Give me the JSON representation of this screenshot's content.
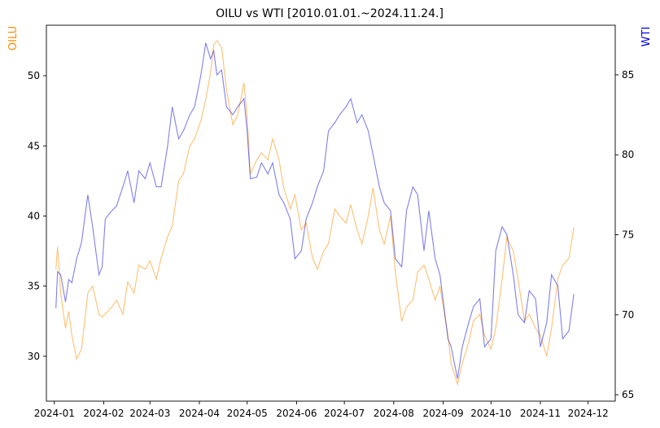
{
  "chart_data": {
    "type": "line",
    "title": "OILU vs WTI [2010.01.01.~2024.11.24.]",
    "xlabel": "",
    "y_left_label": "OILU",
    "y_right_label": "WTI",
    "x_ticks": [
      "2024-01",
      "2024-02",
      "2024-03",
      "2024-04",
      "2024-05",
      "2024-06",
      "2024-07",
      "2024-08",
      "2024-09",
      "2024-10",
      "2024-11",
      "2024-12"
    ],
    "y_left_ticks": [
      30,
      35,
      40,
      45,
      50
    ],
    "y_right_ticks": [
      65,
      70,
      75,
      80,
      85
    ],
    "y_left_lim": [
      26.8,
      53.6
    ],
    "y_right_lim": [
      64.6,
      88.1
    ],
    "x_range": [
      "2023-12-27",
      "2024-12-18"
    ],
    "grid": false,
    "colors": {
      "OILU": "#ff8c00",
      "WTI": "#0000dd"
    },
    "series": [
      {
        "name": "OILU",
        "axis": "left",
        "x": [
          "2024-01-02",
          "2024-01-03",
          "2024-01-05",
          "2024-01-08",
          "2024-01-10",
          "2024-01-12",
          "2024-01-15",
          "2024-01-18",
          "2024-01-22",
          "2024-01-25",
          "2024-01-29",
          "2024-01-31",
          "2024-02-02",
          "2024-02-06",
          "2024-02-09",
          "2024-02-13",
          "2024-02-16",
          "2024-02-20",
          "2024-02-23",
          "2024-02-27",
          "2024-03-01",
          "2024-03-05",
          "2024-03-08",
          "2024-03-12",
          "2024-03-15",
          "2024-03-19",
          "2024-03-22",
          "2024-03-26",
          "2024-03-29",
          "2024-04-02",
          "2024-04-05",
          "2024-04-08",
          "2024-04-10",
          "2024-04-12",
          "2024-04-15",
          "2024-04-18",
          "2024-04-22",
          "2024-04-25",
          "2024-04-29",
          "2024-05-01",
          "2024-05-03",
          "2024-05-07",
          "2024-05-10",
          "2024-05-14",
          "2024-05-17",
          "2024-05-21",
          "2024-05-24",
          "2024-05-28",
          "2024-05-31",
          "2024-06-04",
          "2024-06-07",
          "2024-06-11",
          "2024-06-14",
          "2024-06-18",
          "2024-06-21",
          "2024-06-25",
          "2024-06-28",
          "2024-07-02",
          "2024-07-05",
          "2024-07-09",
          "2024-07-12",
          "2024-07-16",
          "2024-07-19",
          "2024-07-23",
          "2024-07-26",
          "2024-07-30",
          "2024-08-02",
          "2024-08-06",
          "2024-08-09",
          "2024-08-13",
          "2024-08-16",
          "2024-08-20",
          "2024-08-23",
          "2024-08-27",
          "2024-08-30",
          "2024-09-04",
          "2024-09-06",
          "2024-09-10",
          "2024-09-13",
          "2024-09-17",
          "2024-09-20",
          "2024-09-24",
          "2024-09-27",
          "2024-10-01",
          "2024-10-04",
          "2024-10-08",
          "2024-10-11",
          "2024-10-15",
          "2024-10-18",
          "2024-10-22",
          "2024-10-25",
          "2024-10-29",
          "2024-11-01",
          "2024-11-05",
          "2024-11-08",
          "2024-11-12",
          "2024-11-15",
          "2024-11-19",
          "2024-11-22"
        ],
        "values": [
          36.2,
          37.8,
          34.5,
          32.0,
          33.2,
          31.5,
          29.8,
          30.5,
          34.5,
          35.0,
          33.0,
          32.8,
          33.0,
          33.5,
          34.0,
          33.0,
          35.3,
          34.5,
          36.5,
          36.2,
          36.8,
          35.5,
          37.0,
          38.5,
          39.3,
          42.5,
          43.0,
          45.0,
          45.5,
          46.8,
          48.3,
          50.2,
          52.2,
          52.5,
          52.0,
          49.0,
          46.5,
          47.2,
          49.5,
          47.0,
          43.0,
          44.0,
          44.5,
          44.0,
          45.5,
          44.0,
          42.0,
          40.5,
          41.5,
          39.0,
          39.5,
          37.0,
          36.2,
          37.5,
          38.0,
          40.5,
          40.0,
          39.5,
          40.8,
          39.0,
          38.0,
          40.0,
          42.0,
          39.0,
          38.0,
          40.0,
          36.0,
          32.5,
          33.5,
          34.0,
          36.0,
          36.5,
          35.5,
          34.0,
          35.0,
          31.5,
          29.5,
          28.0,
          29.5,
          31.0,
          32.5,
          33.0,
          31.5,
          30.5,
          32.0,
          35.5,
          38.5,
          37.5,
          35.5,
          32.5,
          33.0,
          32.0,
          31.5,
          30.0,
          32.0,
          35.5,
          36.5,
          37.0,
          39.2
        ]
      },
      {
        "name": "WTI",
        "axis": "right",
        "x": [
          "2024-01-02",
          "2024-01-03",
          "2024-01-05",
          "2024-01-08",
          "2024-01-10",
          "2024-01-12",
          "2024-01-15",
          "2024-01-18",
          "2024-01-22",
          "2024-01-25",
          "2024-01-29",
          "2024-01-31",
          "2024-02-02",
          "2024-02-06",
          "2024-02-09",
          "2024-02-13",
          "2024-02-16",
          "2024-02-20",
          "2024-02-23",
          "2024-02-27",
          "2024-03-01",
          "2024-03-05",
          "2024-03-08",
          "2024-03-12",
          "2024-03-15",
          "2024-03-19",
          "2024-03-22",
          "2024-03-26",
          "2024-03-29",
          "2024-04-02",
          "2024-04-05",
          "2024-04-08",
          "2024-04-10",
          "2024-04-12",
          "2024-04-15",
          "2024-04-18",
          "2024-04-22",
          "2024-04-25",
          "2024-04-29",
          "2024-05-01",
          "2024-05-03",
          "2024-05-07",
          "2024-05-10",
          "2024-05-14",
          "2024-05-17",
          "2024-05-21",
          "2024-05-24",
          "2024-05-28",
          "2024-05-31",
          "2024-06-04",
          "2024-06-07",
          "2024-06-11",
          "2024-06-14",
          "2024-06-18",
          "2024-06-21",
          "2024-06-25",
          "2024-06-28",
          "2024-07-02",
          "2024-07-05",
          "2024-07-09",
          "2024-07-12",
          "2024-07-16",
          "2024-07-19",
          "2024-07-23",
          "2024-07-26",
          "2024-07-30",
          "2024-08-02",
          "2024-08-06",
          "2024-08-09",
          "2024-08-13",
          "2024-08-16",
          "2024-08-20",
          "2024-08-23",
          "2024-08-27",
          "2024-08-30",
          "2024-09-04",
          "2024-09-06",
          "2024-09-10",
          "2024-09-13",
          "2024-09-17",
          "2024-09-20",
          "2024-09-24",
          "2024-09-27",
          "2024-10-01",
          "2024-10-04",
          "2024-10-08",
          "2024-10-11",
          "2024-10-15",
          "2024-10-18",
          "2024-10-22",
          "2024-10-25",
          "2024-10-29",
          "2024-11-01",
          "2024-11-05",
          "2024-11-08",
          "2024-11-12",
          "2024-11-15",
          "2024-11-19",
          "2024-11-22"
        ],
        "values": [
          70.4,
          72.7,
          72.5,
          70.8,
          72.2,
          72.0,
          73.5,
          74.5,
          77.5,
          75.5,
          72.5,
          73.0,
          76.0,
          76.5,
          76.8,
          78.0,
          79.0,
          77.0,
          79.0,
          78.5,
          79.5,
          78.0,
          78.0,
          80.5,
          83.0,
          81.0,
          81.5,
          82.5,
          83.0,
          85.0,
          87.0,
          86.0,
          86.5,
          85.0,
          85.3,
          83.0,
          82.5,
          83.0,
          83.5,
          81.5,
          78.5,
          78.6,
          79.5,
          78.8,
          79.5,
          77.5,
          77.0,
          76.0,
          73.5,
          74.0,
          76.0,
          77.0,
          78.0,
          79.0,
          81.5,
          82.0,
          82.5,
          83.0,
          83.5,
          82.0,
          82.5,
          81.5,
          80.0,
          78.0,
          77.0,
          76.5,
          73.5,
          73.0,
          76.5,
          78.0,
          77.5,
          74.0,
          76.5,
          73.5,
          72.5,
          68.5,
          68.0,
          66.0,
          68.0,
          69.5,
          70.5,
          71.0,
          68.0,
          68.5,
          74.0,
          75.5,
          75.0,
          72.5,
          70.0,
          69.5,
          71.5,
          71.0,
          68.0,
          69.5,
          72.5,
          71.8,
          68.5,
          69.0,
          71.3
        ]
      }
    ]
  }
}
